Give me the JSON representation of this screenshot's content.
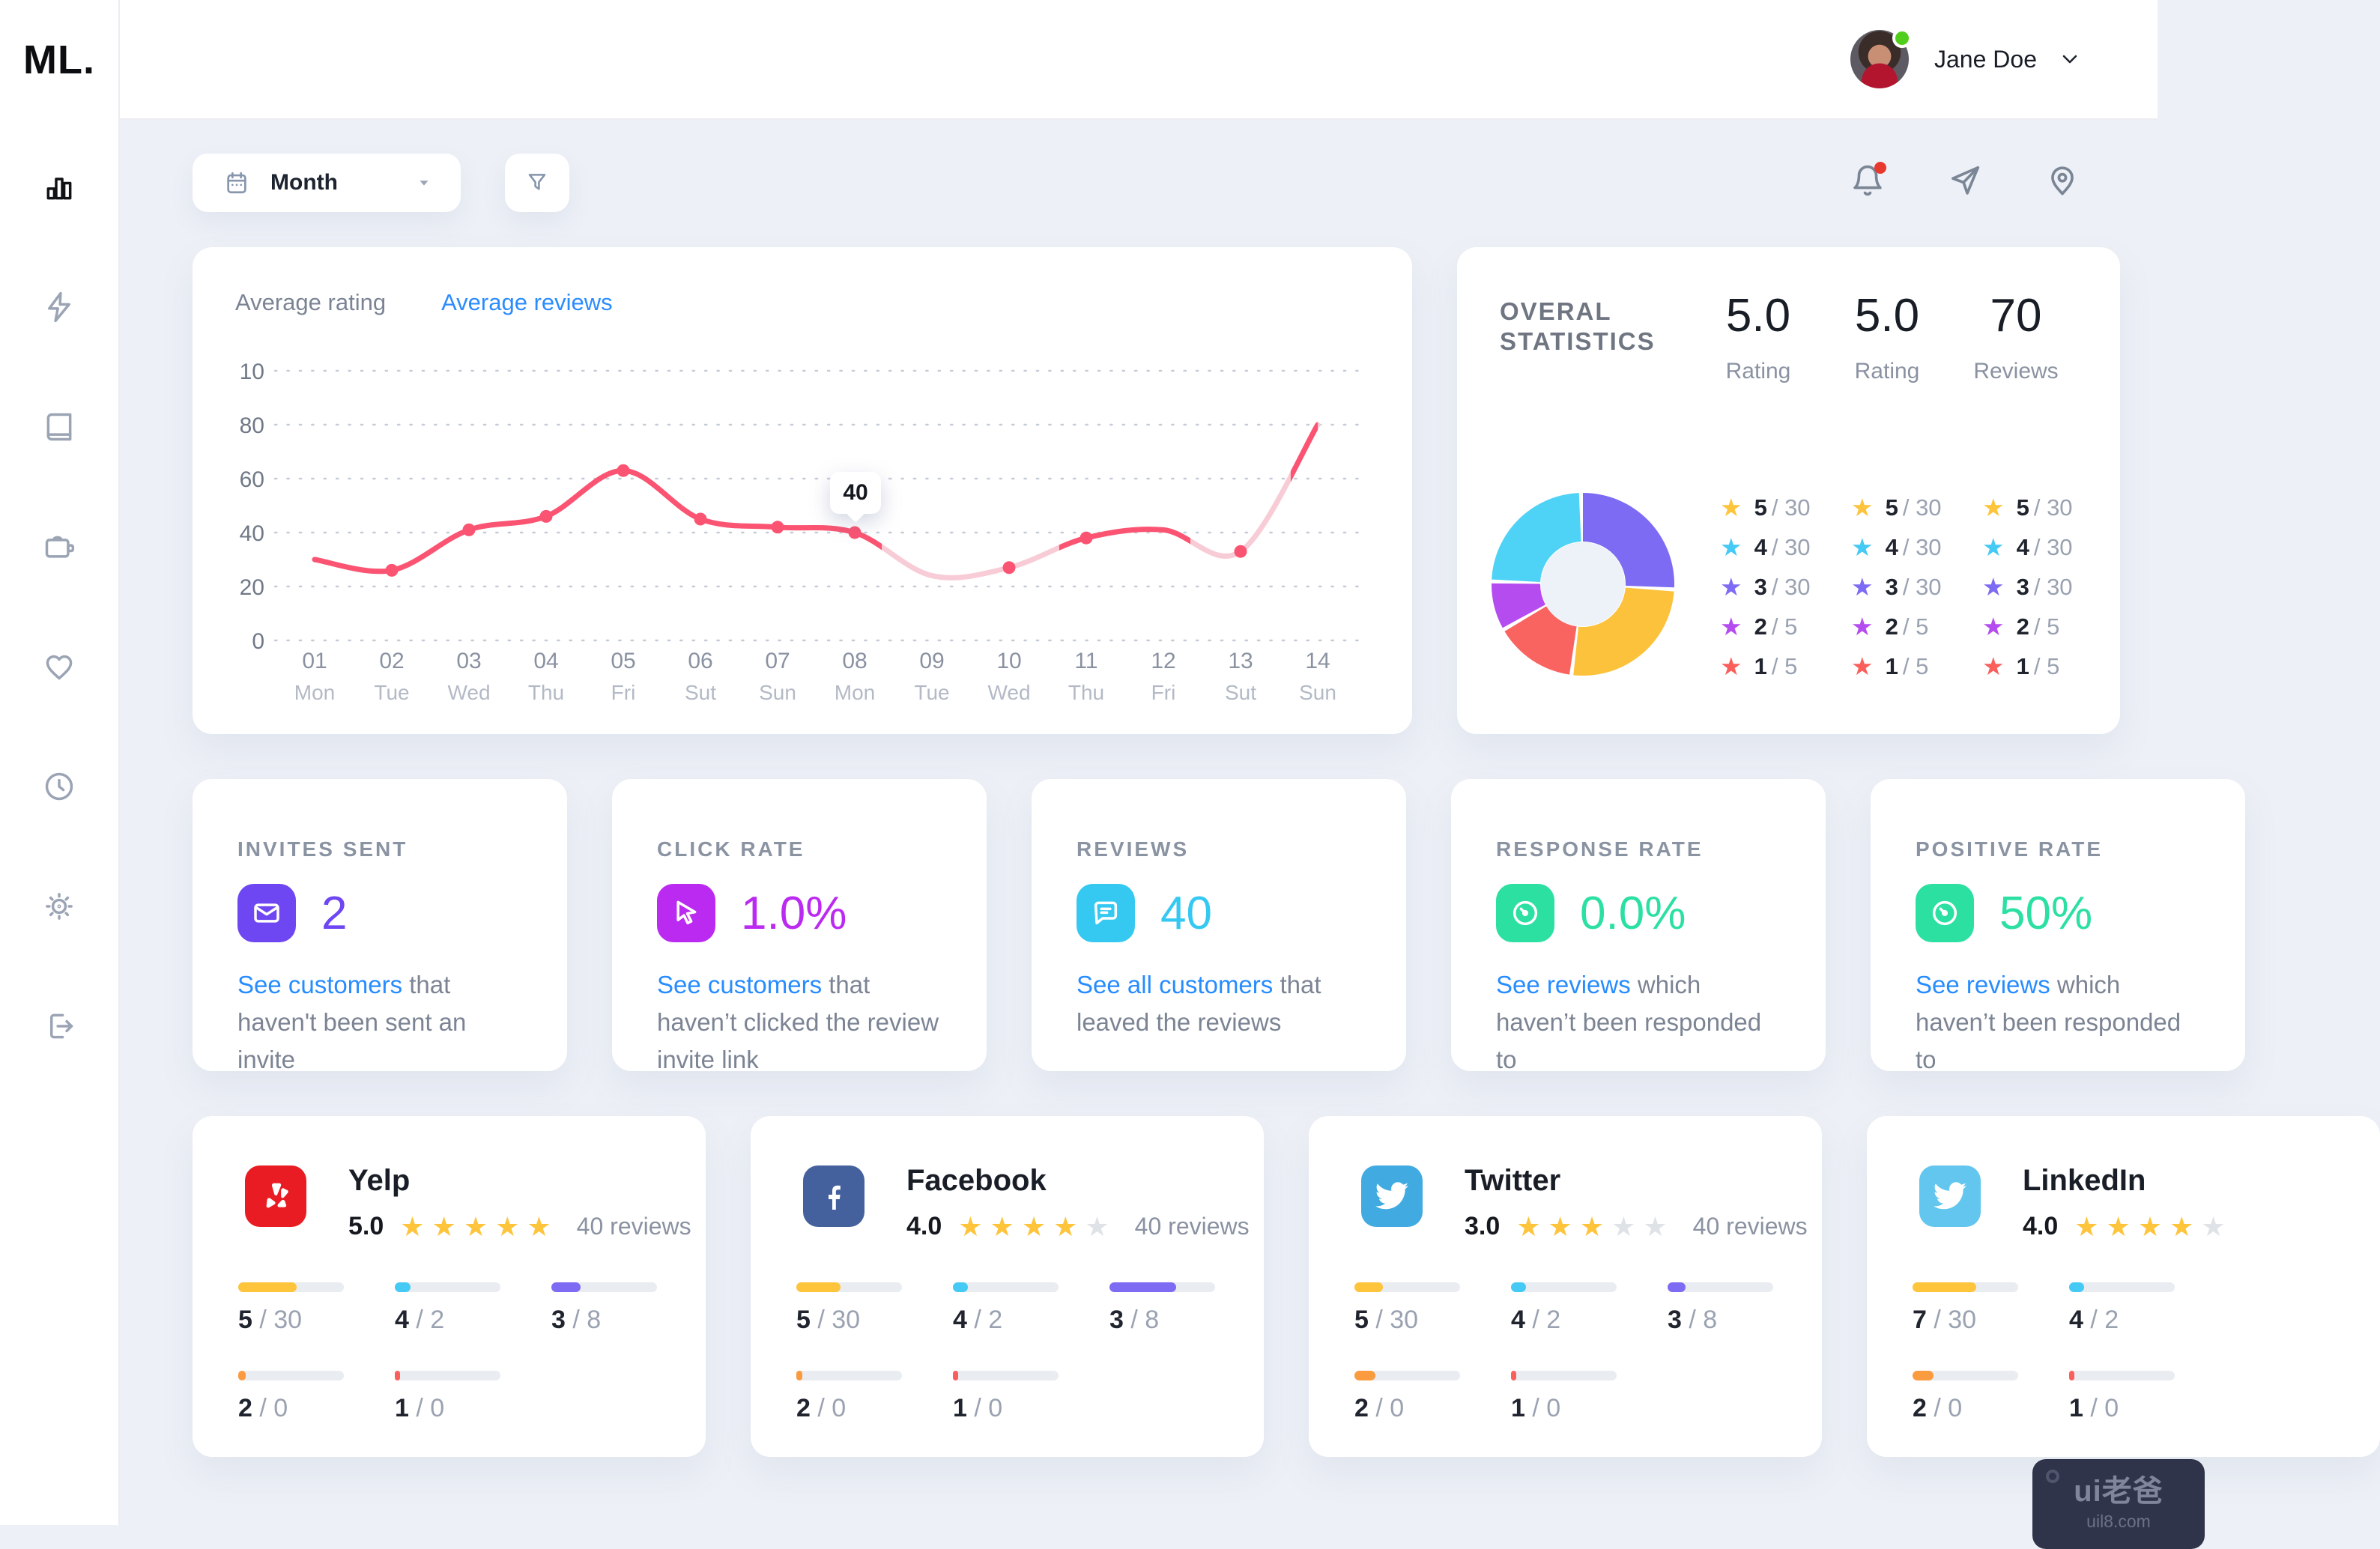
{
  "window": {
    "logo": "ML."
  },
  "topbar": {
    "user": {
      "name": "Jane Doe",
      "status": "online"
    },
    "action_icons": [
      "bell",
      "send",
      "location-pin"
    ]
  },
  "sidebar": {
    "items": [
      {
        "icon": "bar-chart",
        "active": true
      },
      {
        "icon": "zap",
        "active": false
      },
      {
        "icon": "book",
        "active": false
      },
      {
        "icon": "wallet",
        "active": false
      },
      {
        "icon": "heart",
        "active": false
      },
      {
        "icon": "clock",
        "active": false
      },
      {
        "icon": "sun",
        "active": false
      },
      {
        "icon": "logout",
        "active": false
      }
    ]
  },
  "controls": {
    "period": "Month"
  },
  "chart_data": {
    "type": "line",
    "tabs": [
      {
        "label": "Average rating",
        "active": false
      },
      {
        "label": "Average reviews",
        "active": true
      }
    ],
    "x": [
      {
        "day": "01",
        "weekday": "Mon"
      },
      {
        "day": "02",
        "weekday": "Tue"
      },
      {
        "day": "03",
        "weekday": "Wed"
      },
      {
        "day": "04",
        "weekday": "Thu"
      },
      {
        "day": "05",
        "weekday": "Fri"
      },
      {
        "day": "06",
        "weekday": "Sut"
      },
      {
        "day": "07",
        "weekday": "Sun"
      },
      {
        "day": "08",
        "weekday": "Mon"
      },
      {
        "day": "09",
        "weekday": "Tue"
      },
      {
        "day": "10",
        "weekday": "Wed"
      },
      {
        "day": "11",
        "weekday": "Thu"
      },
      {
        "day": "12",
        "weekday": "Fri"
      },
      {
        "day": "13",
        "weekday": "Sut"
      },
      {
        "day": "14",
        "weekday": "Sun"
      }
    ],
    "y_tick_labels": [
      "10",
      "80",
      "60",
      "40",
      "20",
      "0"
    ],
    "ylim": [
      0,
      100
    ],
    "grid": true,
    "series": [
      {
        "name": "Average reviews",
        "values": [
          30,
          26,
          41,
          46,
          63,
          45,
          42,
          40,
          24,
          27,
          38,
          41,
          33,
          80
        ]
      }
    ],
    "marker_indices": [
      1,
      2,
      3,
      4,
      5,
      6,
      7,
      9,
      10,
      12
    ],
    "muted_segments": [
      [
        7.35,
        9.65
      ],
      [
        11.35,
        12.65
      ]
    ],
    "tooltip": {
      "index": 7,
      "label": "40"
    },
    "colors": {
      "line": "#fb5472",
      "muted": "#f8ccd6"
    }
  },
  "overall": {
    "title_lines": [
      "OVERAL",
      "STATISTICS"
    ],
    "metrics": [
      {
        "value": "5.0",
        "label": "Rating"
      },
      {
        "value": "5.0",
        "label": "Rating"
      },
      {
        "value": "70",
        "label": "Reviews"
      }
    ],
    "donut": {
      "hole_color": "#edf1f8",
      "segments": [
        {
          "name": "3-star",
          "color": "#7d6bf3",
          "from": 0,
          "to": 92
        },
        {
          "name": "5-star",
          "color": "#fcc23c",
          "from": 94.5,
          "to": 186
        },
        {
          "name": "1-star",
          "color": "#f96461",
          "from": 188.5,
          "to": 239
        },
        {
          "name": "2-star",
          "color": "#b44cf0",
          "from": 241.5,
          "to": 270.5
        },
        {
          "name": "4-star",
          "color": "#4ed2f6",
          "from": 273,
          "to": 357.5
        }
      ]
    },
    "breakdown_columns": 3,
    "breakdown_rows": [
      {
        "stars": "5",
        "total": "30",
        "color": "#fdc43c"
      },
      {
        "stars": "4",
        "total": "30",
        "color": "#45c9f5"
      },
      {
        "stars": "3",
        "total": "30",
        "color": "#7d6bf3"
      },
      {
        "stars": "2",
        "total": "5",
        "color": "#b44cf0"
      },
      {
        "stars": "1",
        "total": "5",
        "color": "#fa5f5c"
      }
    ]
  },
  "stat_cards": [
    {
      "title": "INVITES SENT",
      "icon": "envelope",
      "accent": "#6e46f2",
      "value": "2",
      "link_text": "See customers",
      "rest_text": " that haven't been sent an invite"
    },
    {
      "title": "CLICK RATE",
      "icon": "cursor",
      "accent": "#bb2af0",
      "value": "1.0%",
      "link_text": "See customers",
      "rest_text": " that haven’t clicked the review invite link"
    },
    {
      "title": "REVIEWS",
      "icon": "chat",
      "accent": "#35c9f2",
      "value": "40",
      "link_text": "See all customers",
      "rest_text": " that leaved the reviews"
    },
    {
      "title": "RESPONSE RATE",
      "icon": "gauge",
      "accent": "#2ce0a2",
      "value": "0.0%",
      "link_text": "See reviews",
      "rest_text": " which haven’t been responded to"
    },
    {
      "title": "POSITIVE RATE",
      "icon": "gauge",
      "accent": "#2ce0a2",
      "value": "50%",
      "link_text": "See reviews",
      "rest_text": " which haven’t been responded to"
    }
  ],
  "social_cards": [
    {
      "name": "Yelp",
      "icon": "yelp",
      "icon_bg": "#e91c23",
      "rating": "5.0",
      "stars_filled": 5,
      "reviews": "40 reviews",
      "bars": [
        {
          "value": "5",
          "total": "30",
          "color": "#fdc43c",
          "fraction": 0.55
        },
        {
          "value": "4",
          "total": "2",
          "color": "#45c9f5",
          "fraction": 0.15
        },
        {
          "value": "3",
          "total": "8",
          "color": "#7d6bf3",
          "fraction": 0.28
        },
        {
          "value": "2",
          "total": "0",
          "color": "#fb9b3f",
          "fraction": 0.07
        },
        {
          "value": "1",
          "total": "0",
          "color": "#fa5f5c",
          "fraction": 0.05
        }
      ]
    },
    {
      "name": "Facebook",
      "icon": "facebook",
      "icon_bg": "#44619d",
      "rating": "4.0",
      "stars_filled": 4,
      "reviews": "40 reviews",
      "bars": [
        {
          "value": "5",
          "total": "30",
          "color": "#fdc43c",
          "fraction": 0.42
        },
        {
          "value": "4",
          "total": "2",
          "color": "#45c9f5",
          "fraction": 0.14
        },
        {
          "value": "3",
          "total": "8",
          "color": "#7d6bf3",
          "fraction": 0.63
        },
        {
          "value": "2",
          "total": "0",
          "color": "#fb9b3f",
          "fraction": 0.06
        },
        {
          "value": "1",
          "total": "0",
          "color": "#fa5f5c",
          "fraction": 0.05
        }
      ]
    },
    {
      "name": "Twitter",
      "icon": "twitter",
      "icon_bg": "#41abe1",
      "rating": "3.0",
      "stars_filled": 3,
      "reviews": "40 reviews",
      "bars": [
        {
          "value": "5",
          "total": "30",
          "color": "#fdc43c",
          "fraction": 0.27
        },
        {
          "value": "4",
          "total": "2",
          "color": "#45c9f5",
          "fraction": 0.14
        },
        {
          "value": "3",
          "total": "8",
          "color": "#7d6bf3",
          "fraction": 0.17
        },
        {
          "value": "2",
          "total": "0",
          "color": "#fb9b3f",
          "fraction": 0.2
        },
        {
          "value": "1",
          "total": "0",
          "color": "#fa5f5c",
          "fraction": 0.05
        }
      ]
    },
    {
      "name": "LinkedIn",
      "icon": "twitter",
      "icon_bg": "#62c6ee",
      "rating": "4.0",
      "stars_filled": 4,
      "reviews": "",
      "bars": [
        {
          "value": "7",
          "total": "30",
          "color": "#fdc43c",
          "fraction": 0.6
        },
        {
          "value": "4",
          "total": "2",
          "color": "#45c9f5",
          "fraction": 0.14
        },
        {
          "spacer": true
        },
        {
          "value": "2",
          "total": "0",
          "color": "#fb9b3f",
          "fraction": 0.2
        },
        {
          "value": "1",
          "total": "0",
          "color": "#fa5f5c",
          "fraction": 0.05
        }
      ]
    }
  ],
  "star_colors": {
    "filled": "#fdc43c",
    "empty": "#dfe3e8"
  },
  "watermark": {
    "title": "ui老爸",
    "domain": "uil8.com"
  }
}
